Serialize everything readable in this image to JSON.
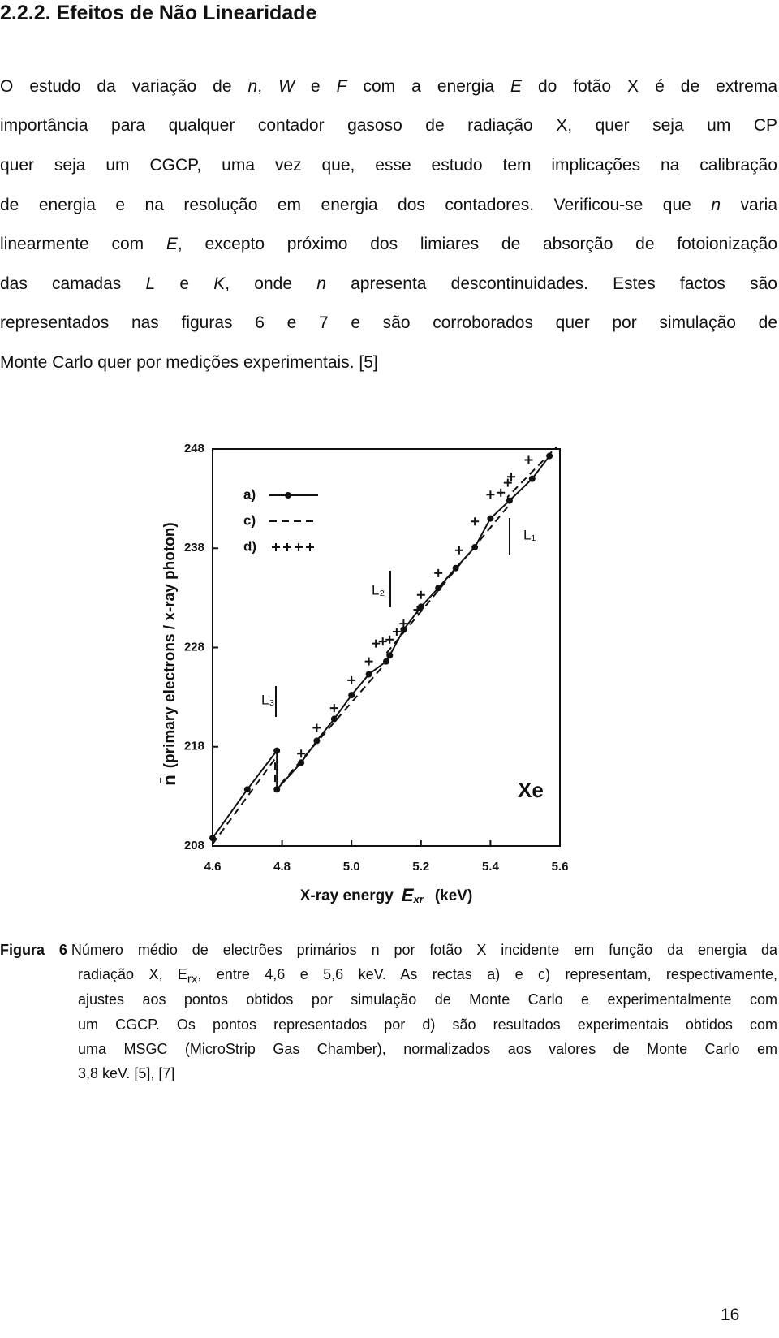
{
  "heading": "2.2.2. Efeitos de Não Linearidade",
  "paragraph": {
    "lines": [
      [
        "O estudo da variação de ",
        "n",
        ", ",
        "W",
        " e ",
        "F",
        " com a energia ",
        "E",
        " do fotão X é de extrema"
      ],
      [
        "importância para qualquer contador gasoso de radiação X, quer seja um CP"
      ],
      [
        "quer seja um CGCP, uma vez que, esse estudo tem implicações na calibração"
      ],
      [
        "de energia e na resolução em energia dos contadores. Verificou-se que ",
        "n",
        " varia"
      ],
      [
        "linearmente com ",
        "E",
        ", excepto próximo dos limiares de absorção de fotoionização"
      ],
      [
        "das camadas ",
        "L",
        " e ",
        "K",
        ", onde ",
        "n",
        " apresenta descontinuidades. Estes factos são"
      ],
      [
        "representados nas figuras 6 e 7 e são corroborados quer por simulação de"
      ],
      [
        "Monte Carlo quer por medições experimentais. [5]"
      ]
    ]
  },
  "chart_data": {
    "type": "line",
    "xlabel": {
      "text": "X-ray energy",
      "symbol": "E",
      "subscript": "xr",
      "unit": "(keV)"
    },
    "ylabel": {
      "symbol": "n̄",
      "text": "(primary electrons / x-ray photon)"
    },
    "xlim": [
      4.6,
      5.6
    ],
    "xticks": [
      4.6,
      4.8,
      {
        "value": 5,
        "label": "5.0"
      },
      5.2,
      5.4,
      5.6
    ],
    "ylim": [
      208,
      248
    ],
    "yticks": [
      208,
      218,
      228,
      238,
      248
    ],
    "grid": false,
    "legend": "upper left",
    "annotations": [
      "L₃",
      "L₂",
      "L₁",
      "Xe"
    ],
    "series": [
      {
        "name": "a)",
        "color": "#111111",
        "style": "line-dot",
        "x": [
          4.6,
          4.7,
          4.785,
          4.785,
          4.855,
          4.9,
          4.95,
          5.0,
          5.05,
          5.1,
          5.11,
          5.15,
          5.2,
          5.25,
          5.3,
          5.355,
          5.4,
          5.455,
          5.52,
          5.57
        ],
        "values": [
          208.8,
          213.7,
          217.6,
          213.7,
          216.4,
          218.6,
          220.8,
          223.2,
          225.3,
          226.6,
          227.2,
          229.8,
          232.1,
          234.0,
          236.0,
          238.1,
          241.0,
          242.8,
          245.0,
          247.3
        ]
      },
      {
        "name": "c)",
        "color": "#111111",
        "style": "dashed",
        "x": [
          4.6,
          4.78,
          4.78,
          5.1,
          5.1,
          5.45,
          5.45,
          5.59
        ],
        "values": [
          208.2,
          216.8,
          213.6,
          226.5,
          227.4,
          242.2,
          243.2,
          248.2
        ]
      },
      {
        "name": "d)",
        "color": "#111111",
        "style": "plus",
        "x": [
          4.855,
          4.9,
          4.95,
          5.0,
          5.05,
          5.07,
          5.09,
          5.11,
          5.13,
          5.15,
          5.19,
          5.2,
          5.25,
          5.31,
          5.355,
          5.4,
          5.43,
          5.45,
          5.46,
          5.51
        ],
        "values": [
          217.3,
          219.9,
          221.9,
          224.7,
          226.6,
          228.4,
          228.6,
          228.8,
          229.6,
          230.4,
          231.8,
          233.3,
          235.5,
          237.8,
          240.7,
          243.4,
          243.6,
          244.6,
          245.2,
          246.9
        ]
      }
    ]
  },
  "caption": {
    "label": "Figura 6",
    "lines": [
      [
        "Número médio de electrões primários n por fotão X incidente em função da energia da"
      ],
      [
        "radiação X, E",
        "rx",
        ", entre 4,6 e 5,6 keV. As rectas a) e c) representam, respectivamente,"
      ],
      [
        "ajustes aos pontos obtidos por simulação de Monte Carlo e experimentalmente com"
      ],
      [
        "um CGCP. Os pontos representados por d) são resultados experimentais obtidos com"
      ],
      [
        "uma MSGC (MicroStrip Gas Chamber), normalizados aos valores de Monte Carlo em"
      ],
      [
        "3,8 keV. [5], [7]"
      ]
    ]
  },
  "page_number": "16"
}
